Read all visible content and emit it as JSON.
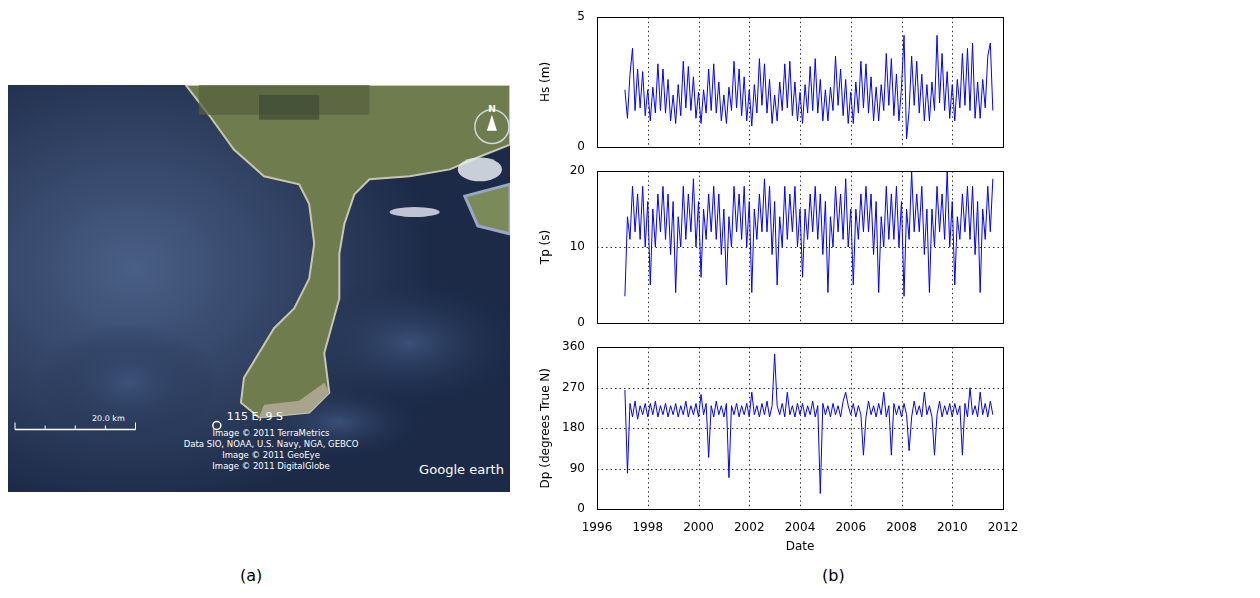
{
  "panel_labels": [
    "(a)",
    "(b)"
  ],
  "image": {
    "marker_label": "115 E, 9 S",
    "scale_bar": "20.0 km",
    "north": "N",
    "credits": [
      "Image © 2011 TerraMetrics",
      "Data SIO, NOAA, U.S. Navy, NGA, GEBCO",
      "Image © 2011 GeoEye",
      "Image © 2011 DigitalGlobe"
    ],
    "brand": "Google earth"
  },
  "chart_data": [
    {
      "type": "line",
      "y_label": "Hs (m)",
      "color": "#0000ff",
      "grid": true,
      "tick_labels": "y",
      "xlim": [
        1996,
        2012
      ],
      "xticks": [
        1996,
        1998,
        2000,
        2002,
        2004,
        2006,
        2008,
        2010,
        2012
      ],
      "ylim": [
        0,
        5
      ],
      "yticks": [
        0,
        5
      ],
      "x": [
        1997.1,
        1997.2,
        1997.3,
        1997.4,
        1997.5,
        1997.6,
        1997.7,
        1997.8,
        1997.9,
        1998,
        1998.1,
        1998.2,
        1998.3,
        1998.4,
        1998.5,
        1998.6,
        1998.7,
        1998.8,
        1998.9,
        1999,
        1999.1,
        1999.2,
        1999.3,
        1999.4,
        1999.5,
        1999.6,
        1999.7,
        1999.8,
        1999.9,
        2000,
        2000.1,
        2000.2,
        2000.3,
        2000.4,
        2000.5,
        2000.6,
        2000.7,
        2000.8,
        2000.9,
        2001,
        2001.1,
        2001.2,
        2001.3,
        2001.4,
        2001.5,
        2001.6,
        2001.7,
        2001.8,
        2001.9,
        2002,
        2002.1,
        2002.2,
        2002.3,
        2002.4,
        2002.5,
        2002.6,
        2002.7,
        2002.8,
        2002.9,
        2003,
        2003.1,
        2003.2,
        2003.3,
        2003.4,
        2003.5,
        2003.6,
        2003.7,
        2003.8,
        2003.9,
        2004,
        2004.1,
        2004.2,
        2004.3,
        2004.4,
        2004.5,
        2004.6,
        2004.7,
        2004.8,
        2004.9,
        2005,
        2005.1,
        2005.2,
        2005.3,
        2005.4,
        2005.5,
        2005.6,
        2005.7,
        2005.8,
        2005.9,
        2006,
        2006.1,
        2006.2,
        2006.3,
        2006.4,
        2006.5,
        2006.6,
        2006.7,
        2006.8,
        2006.9,
        2007,
        2007.1,
        2007.2,
        2007.3,
        2007.4,
        2007.5,
        2007.6,
        2007.7,
        2007.8,
        2007.9,
        2008,
        2008.1,
        2008.2,
        2008.3,
        2008.4,
        2008.5,
        2008.6,
        2008.7,
        2008.8,
        2008.9,
        2009,
        2009.1,
        2009.2,
        2009.3,
        2009.4,
        2009.5,
        2009.6,
        2009.7,
        2009.8,
        2009.9,
        2010,
        2010.1,
        2010.2,
        2010.3,
        2010.4,
        2010.5,
        2010.6,
        2010.7,
        2010.8,
        2010.9,
        2011,
        2011.1,
        2011.2,
        2011.3,
        2011.4,
        2011.5,
        2011.6
      ],
      "values": [
        2.2,
        1.1,
        2.8,
        3.8,
        1.4,
        3.0,
        1.5,
        2.9,
        1.2,
        2.2,
        1.0,
        2.3,
        1.3,
        3.2,
        1.4,
        3.0,
        1.3,
        2.6,
        1.0,
        2.0,
        0.9,
        2.4,
        1.2,
        3.3,
        1.5,
        3.1,
        1.4,
        2.7,
        1.1,
        2.1,
        0.9,
        2.2,
        1.3,
        3.0,
        1.4,
        3.2,
        1.3,
        2.5,
        1.0,
        2.0,
        0.9,
        2.3,
        1.4,
        3.3,
        1.5,
        3.0,
        1.2,
        2.7,
        1.0,
        2.2,
        0.8,
        2.4,
        1.3,
        3.4,
        1.6,
        3.2,
        1.3,
        2.6,
        0.9,
        2.0,
        1.0,
        2.5,
        1.4,
        3.2,
        1.5,
        3.3,
        1.2,
        2.5,
        1.0,
        2.1,
        0.9,
        2.4,
        1.3,
        3.1,
        1.4,
        3.4,
        1.3,
        2.6,
        1.0,
        2.2,
        1.0,
        2.3,
        1.4,
        3.5,
        1.6,
        3.0,
        1.2,
        2.6,
        0.9,
        2.1,
        0.9,
        2.5,
        1.3,
        3.3,
        1.5,
        3.2,
        1.3,
        2.7,
        1.0,
        2.3,
        1.0,
        2.4,
        1.4,
        3.6,
        1.6,
        3.4,
        1.2,
        2.8,
        1.0,
        2.3,
        4.3,
        0.3,
        1.4,
        3.5,
        1.6,
        3.3,
        1.3,
        2.8,
        1.0,
        2.4,
        1.0,
        2.5,
        1.4,
        4.3,
        1.7,
        3.6,
        1.4,
        2.9,
        1.1,
        2.4,
        1.0,
        2.6,
        1.5,
        3.6,
        1.6,
        3.8,
        1.4,
        4.0,
        1.1,
        2.5,
        1.1,
        2.6,
        1.5,
        3.5,
        4.0,
        1.4
      ]
    },
    {
      "type": "line",
      "y_label": "Tp (s)",
      "color": "#0000ff",
      "grid": true,
      "tick_labels": "y",
      "xlim": [
        1996,
        2012
      ],
      "xticks": [
        1996,
        1998,
        2000,
        2002,
        2004,
        2006,
        2008,
        2010,
        2012
      ],
      "ylim": [
        0,
        20
      ],
      "yticks": [
        0,
        10,
        20
      ],
      "x": [
        1997.1,
        1997.2,
        1997.3,
        1997.4,
        1997.5,
        1997.6,
        1997.7,
        1997.8,
        1997.9,
        1998,
        1998.1,
        1998.2,
        1998.3,
        1998.4,
        1998.5,
        1998.6,
        1998.7,
        1998.8,
        1998.9,
        1999,
        1999.1,
        1999.2,
        1999.3,
        1999.4,
        1999.5,
        1999.6,
        1999.7,
        1999.8,
        1999.9,
        2000,
        2000.1,
        2000.2,
        2000.3,
        2000.4,
        2000.5,
        2000.6,
        2000.7,
        2000.8,
        2000.9,
        2001,
        2001.1,
        2001.2,
        2001.3,
        2001.4,
        2001.5,
        2001.6,
        2001.7,
        2001.8,
        2001.9,
        2002,
        2002.1,
        2002.2,
        2002.3,
        2002.4,
        2002.5,
        2002.6,
        2002.7,
        2002.8,
        2002.9,
        2003,
        2003.1,
        2003.2,
        2003.3,
        2003.4,
        2003.5,
        2003.6,
        2003.7,
        2003.8,
        2003.9,
        2004,
        2004.1,
        2004.2,
        2004.3,
        2004.4,
        2004.5,
        2004.6,
        2004.7,
        2004.8,
        2004.9,
        2005,
        2005.1,
        2005.2,
        2005.3,
        2005.4,
        2005.5,
        2005.6,
        2005.7,
        2005.8,
        2005.9,
        2006,
        2006.1,
        2006.2,
        2006.3,
        2006.4,
        2006.5,
        2006.6,
        2006.7,
        2006.8,
        2006.9,
        2007,
        2007.1,
        2007.2,
        2007.3,
        2007.4,
        2007.5,
        2007.6,
        2007.7,
        2007.8,
        2007.9,
        2008,
        2008.1,
        2008.2,
        2008.3,
        2008.4,
        2008.5,
        2008.6,
        2008.7,
        2008.8,
        2008.9,
        2009,
        2009.1,
        2009.2,
        2009.3,
        2009.4,
        2009.5,
        2009.6,
        2009.7,
        2009.8,
        2009.9,
        2010,
        2010.1,
        2010.2,
        2010.3,
        2010.4,
        2010.5,
        2010.6,
        2010.7,
        2010.8,
        2010.9,
        2011,
        2011.1,
        2011.2,
        2011.3,
        2011.4,
        2011.5,
        2011.6
      ],
      "values": [
        3.5,
        14,
        11,
        18,
        12,
        17,
        11,
        18,
        10,
        16,
        5,
        15,
        10,
        17,
        12,
        18,
        11,
        17,
        9,
        16,
        4,
        14,
        10,
        18,
        11,
        17,
        12,
        19,
        10,
        16,
        6,
        15,
        11,
        17,
        12,
        18,
        11,
        17,
        9,
        15,
        5,
        14,
        10,
        18,
        12,
        17,
        11,
        18,
        10,
        16,
        4,
        15,
        11,
        17,
        12,
        19,
        12,
        18,
        9,
        16,
        5,
        14,
        10,
        18,
        11,
        17,
        12,
        18,
        10,
        15,
        6,
        15,
        11,
        17,
        12,
        18,
        11,
        17,
        9,
        16,
        4,
        14,
        10,
        18,
        12,
        17,
        11,
        19,
        10,
        15,
        5,
        15,
        11,
        17,
        12,
        18,
        12,
        17,
        9,
        16,
        4,
        14,
        10,
        18,
        11,
        17,
        11,
        18,
        10,
        16,
        3.5,
        15,
        11,
        20,
        12,
        17,
        12,
        18,
        9,
        15,
        4,
        15,
        10,
        18,
        12,
        17,
        11,
        20,
        10,
        16,
        5,
        14,
        11,
        17,
        12,
        18,
        11,
        18,
        9,
        16,
        4,
        15,
        11,
        18,
        12,
        19
      ]
    },
    {
      "type": "line",
      "y_label": "Dp (degrees True N)",
      "x_label": "Date",
      "color": "#0000ff",
      "grid": true,
      "xlim": [
        1996,
        2012
      ],
      "xticks": [
        1996,
        1998,
        2000,
        2002,
        2004,
        2006,
        2008,
        2010,
        2012
      ],
      "ylim": [
        0,
        360
      ],
      "yticks": [
        0,
        90,
        180,
        270,
        360
      ],
      "x": [
        1997.1,
        1997.2,
        1997.3,
        1997.4,
        1997.5,
        1997.6,
        1997.7,
        1997.8,
        1997.9,
        1998,
        1998.1,
        1998.2,
        1998.3,
        1998.4,
        1998.5,
        1998.6,
        1998.7,
        1998.8,
        1998.9,
        1999,
        1999.1,
        1999.2,
        1999.3,
        1999.4,
        1999.5,
        1999.6,
        1999.7,
        1999.8,
        1999.9,
        2000,
        2000.1,
        2000.2,
        2000.3,
        2000.4,
        2000.5,
        2000.6,
        2000.7,
        2000.8,
        2000.9,
        2001,
        2001.1,
        2001.2,
        2001.3,
        2001.4,
        2001.5,
        2001.6,
        2001.7,
        2001.8,
        2001.9,
        2002,
        2002.1,
        2002.2,
        2002.3,
        2002.4,
        2002.5,
        2002.6,
        2002.7,
        2002.8,
        2002.9,
        2003,
        2003.1,
        2003.2,
        2003.3,
        2003.4,
        2003.5,
        2003.6,
        2003.7,
        2003.8,
        2003.9,
        2004,
        2004.1,
        2004.2,
        2004.3,
        2004.4,
        2004.5,
        2004.6,
        2004.7,
        2004.8,
        2004.9,
        2005,
        2005.1,
        2005.2,
        2005.3,
        2005.4,
        2005.5,
        2005.6,
        2005.7,
        2005.8,
        2005.9,
        2006,
        2006.1,
        2006.2,
        2006.3,
        2006.4,
        2006.5,
        2006.6,
        2006.7,
        2006.8,
        2006.9,
        2007,
        2007.1,
        2007.2,
        2007.3,
        2007.4,
        2007.5,
        2007.6,
        2007.7,
        2007.8,
        2007.9,
        2008,
        2008.1,
        2008.2,
        2008.3,
        2008.4,
        2008.5,
        2008.6,
        2008.7,
        2008.8,
        2008.9,
        2009,
        2009.1,
        2009.2,
        2009.3,
        2009.4,
        2009.5,
        2009.6,
        2009.7,
        2009.8,
        2009.9,
        2010,
        2010.1,
        2010.2,
        2010.3,
        2010.4,
        2010.5,
        2010.6,
        2010.7,
        2010.8,
        2010.9,
        2011,
        2011.1,
        2011.2,
        2011.3,
        2011.4,
        2011.5,
        2011.6
      ],
      "values": [
        265,
        80,
        235,
        205,
        240,
        200,
        230,
        210,
        235,
        205,
        235,
        210,
        240,
        205,
        230,
        210,
        235,
        205,
        230,
        210,
        235,
        205,
        230,
        210,
        240,
        205,
        230,
        210,
        235,
        205,
        255,
        210,
        235,
        115,
        230,
        205,
        240,
        210,
        230,
        205,
        235,
        70,
        230,
        210,
        235,
        205,
        230,
        210,
        235,
        205,
        260,
        210,
        230,
        205,
        235,
        210,
        240,
        205,
        230,
        345,
        230,
        210,
        235,
        205,
        260,
        210,
        230,
        205,
        235,
        210,
        235,
        205,
        230,
        210,
        240,
        205,
        230,
        35,
        235,
        210,
        230,
        205,
        235,
        210,
        230,
        205,
        240,
        260,
        230,
        210,
        235,
        205,
        230,
        210,
        120,
        205,
        240,
        210,
        230,
        205,
        235,
        210,
        260,
        205,
        230,
        120,
        235,
        210,
        230,
        205,
        235,
        210,
        130,
        205,
        240,
        210,
        230,
        205,
        260,
        210,
        230,
        205,
        120,
        210,
        240,
        205,
        230,
        210,
        235,
        205,
        235,
        210,
        230,
        120,
        235,
        205,
        270,
        210,
        230,
        205,
        260,
        210,
        235,
        205,
        240,
        210
      ]
    }
  ]
}
